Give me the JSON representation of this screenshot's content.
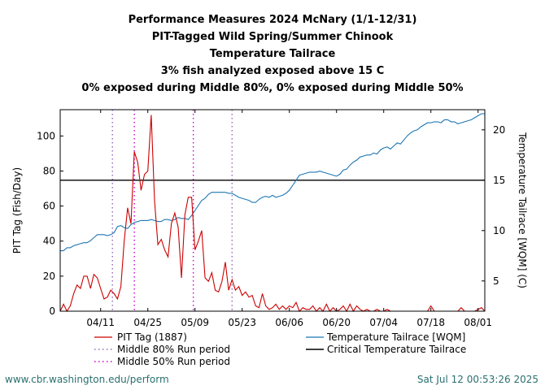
{
  "chart_data": {
    "type": "line",
    "title_lines": [
      "Performance Measures 2024 McNary (1/1-12/31)",
      "PIT-Tagged Wild Spring/Summer Chinook",
      "Temperature Tailrace",
      "3% fish analyzed exposed above 15 C",
      "0% exposed during Middle 80%, 0% exposed during Middle 50%"
    ],
    "ylabel_left": "PIT Tag (Fish/Day)",
    "ylabel_right": "Temperature Tailrace [WQM] (C)",
    "x_range_day": [
      90,
      216
    ],
    "y_left_range": [
      0,
      115
    ],
    "y_right_range": [
      2,
      22
    ],
    "x_ticks": [
      {
        "day": 102,
        "label": "04/11"
      },
      {
        "day": 116,
        "label": "04/25"
      },
      {
        "day": 130,
        "label": "05/09"
      },
      {
        "day": 144,
        "label": "05/23"
      },
      {
        "day": 158,
        "label": "06/06"
      },
      {
        "day": 172,
        "label": "06/20"
      },
      {
        "day": 186,
        "label": "07/04"
      },
      {
        "day": 200,
        "label": "07/18"
      },
      {
        "day": 214,
        "label": "08/01"
      }
    ],
    "y_left_ticks": [
      0,
      20,
      40,
      60,
      80,
      100
    ],
    "y_right_ticks": [
      5,
      10,
      15,
      20
    ],
    "critical_temperature": 15,
    "middle80_days": [
      105.5,
      141
    ],
    "middle50_days": [
      112,
      129.5
    ],
    "series": [
      {
        "name": "PIT Tag",
        "legend": "PIT Tag (1887)",
        "color": "#cc0000",
        "axis": "left",
        "points": [
          [
            90,
            0
          ],
          [
            91,
            4
          ],
          [
            92,
            0
          ],
          [
            93,
            3
          ],
          [
            94,
            10
          ],
          [
            95,
            15
          ],
          [
            96,
            13
          ],
          [
            97,
            20
          ],
          [
            98,
            20
          ],
          [
            99,
            13
          ],
          [
            100,
            21
          ],
          [
            101,
            19
          ],
          [
            102,
            13
          ],
          [
            103,
            7
          ],
          [
            104,
            8
          ],
          [
            105,
            12
          ],
          [
            106,
            10
          ],
          [
            107,
            7
          ],
          [
            108,
            14
          ],
          [
            109,
            40
          ],
          [
            110,
            59
          ],
          [
            111,
            50
          ],
          [
            112,
            91
          ],
          [
            113,
            85
          ],
          [
            114,
            69
          ],
          [
            115,
            78
          ],
          [
            116,
            80
          ],
          [
            117,
            112
          ],
          [
            118,
            63
          ],
          [
            119,
            38
          ],
          [
            120,
            41
          ],
          [
            121,
            35
          ],
          [
            122,
            31
          ],
          [
            123,
            50
          ],
          [
            124,
            56
          ],
          [
            125,
            48
          ],
          [
            126,
            19
          ],
          [
            127,
            55
          ],
          [
            128,
            65
          ],
          [
            129,
            65
          ],
          [
            130,
            35
          ],
          [
            131,
            40
          ],
          [
            132,
            46
          ],
          [
            133,
            19
          ],
          [
            134,
            17
          ],
          [
            135,
            22
          ],
          [
            136,
            12
          ],
          [
            137,
            11
          ],
          [
            138,
            17
          ],
          [
            139,
            28
          ],
          [
            140,
            12
          ],
          [
            141,
            18
          ],
          [
            142,
            12
          ],
          [
            143,
            14
          ],
          [
            144,
            9
          ],
          [
            145,
            11
          ],
          [
            146,
            8
          ],
          [
            147,
            9
          ],
          [
            148,
            3
          ],
          [
            149,
            2
          ],
          [
            150,
            10
          ],
          [
            151,
            3
          ],
          [
            152,
            1
          ],
          [
            153,
            2
          ],
          [
            154,
            4
          ],
          [
            155,
            1
          ],
          [
            156,
            3
          ],
          [
            157,
            1
          ],
          [
            158,
            3
          ],
          [
            159,
            2
          ],
          [
            160,
            5
          ],
          [
            161,
            0
          ],
          [
            162,
            2
          ],
          [
            163,
            1
          ],
          [
            164,
            1
          ],
          [
            165,
            3
          ],
          [
            166,
            0
          ],
          [
            167,
            2
          ],
          [
            168,
            0
          ],
          [
            169,
            4
          ],
          [
            170,
            0
          ],
          [
            171,
            2
          ],
          [
            172,
            0
          ],
          [
            173,
            1
          ],
          [
            174,
            3
          ],
          [
            175,
            0
          ],
          [
            176,
            4
          ],
          [
            177,
            0
          ],
          [
            178,
            3
          ],
          [
            179,
            1
          ],
          [
            180,
            0
          ],
          [
            181,
            1
          ],
          [
            182,
            0
          ],
          [
            183,
            0
          ],
          [
            184,
            1
          ],
          [
            185,
            0
          ],
          [
            186,
            0
          ],
          [
            187,
            1
          ],
          [
            188,
            0
          ],
          [
            189,
            0
          ],
          [
            190,
            0
          ],
          [
            191,
            0
          ],
          [
            192,
            0
          ],
          [
            193,
            0
          ],
          [
            194,
            0
          ],
          [
            195,
            0
          ],
          [
            196,
            0
          ],
          [
            197,
            0
          ],
          [
            198,
            0
          ],
          [
            199,
            0
          ],
          [
            200,
            3
          ],
          [
            201,
            0
          ],
          [
            202,
            0
          ],
          [
            203,
            0
          ],
          [
            204,
            0
          ],
          [
            205,
            0
          ],
          [
            206,
            0
          ],
          [
            207,
            0
          ],
          [
            208,
            0
          ],
          [
            209,
            2
          ],
          [
            210,
            0
          ],
          [
            211,
            0
          ],
          [
            212,
            0
          ],
          [
            213,
            0
          ],
          [
            214,
            1
          ],
          [
            215,
            2
          ],
          [
            216,
            0
          ]
        ]
      },
      {
        "name": "Temperature Tailrace [WQM]",
        "legend": "Temperature Tailrace [WQM]",
        "color": "#1f77b4",
        "axis": "right",
        "points": [
          [
            90,
            8.0
          ],
          [
            91,
            8.0
          ],
          [
            92,
            8.3
          ],
          [
            93,
            8.3
          ],
          [
            94,
            8.5
          ],
          [
            95,
            8.6
          ],
          [
            96,
            8.7
          ],
          [
            97,
            8.8
          ],
          [
            98,
            8.8
          ],
          [
            99,
            9.0
          ],
          [
            100,
            9.3
          ],
          [
            101,
            9.6
          ],
          [
            102,
            9.6
          ],
          [
            103,
            9.6
          ],
          [
            104,
            9.5
          ],
          [
            105,
            9.6
          ],
          [
            106,
            9.8
          ],
          [
            107,
            10.4
          ],
          [
            108,
            10.5
          ],
          [
            109,
            10.3
          ],
          [
            110,
            10.2
          ],
          [
            111,
            10.6
          ],
          [
            112,
            10.8
          ],
          [
            113,
            10.9
          ],
          [
            114,
            11.0
          ],
          [
            115,
            11.0
          ],
          [
            116,
            11.0
          ],
          [
            117,
            11.1
          ],
          [
            118,
            11.0
          ],
          [
            119,
            10.9
          ],
          [
            120,
            10.9
          ],
          [
            121,
            11.1
          ],
          [
            122,
            11.1
          ],
          [
            123,
            11.0
          ],
          [
            124,
            11.1
          ],
          [
            125,
            11.3
          ],
          [
            126,
            11.2
          ],
          [
            127,
            11.2
          ],
          [
            128,
            11.1
          ],
          [
            129,
            11.5
          ],
          [
            130,
            12.0
          ],
          [
            131,
            12.5
          ],
          [
            132,
            13.0
          ],
          [
            133,
            13.2
          ],
          [
            134,
            13.6
          ],
          [
            135,
            13.8
          ],
          [
            136,
            13.8
          ],
          [
            137,
            13.8
          ],
          [
            138,
            13.8
          ],
          [
            139,
            13.8
          ],
          [
            140,
            13.7
          ],
          [
            141,
            13.7
          ],
          [
            142,
            13.5
          ],
          [
            143,
            13.3
          ],
          [
            144,
            13.2
          ],
          [
            145,
            13.1
          ],
          [
            146,
            13.0
          ],
          [
            147,
            12.8
          ],
          [
            148,
            12.8
          ],
          [
            149,
            13.1
          ],
          [
            150,
            13.3
          ],
          [
            151,
            13.4
          ],
          [
            152,
            13.3
          ],
          [
            153,
            13.5
          ],
          [
            154,
            13.3
          ],
          [
            155,
            13.4
          ],
          [
            156,
            13.5
          ],
          [
            157,
            13.7
          ],
          [
            158,
            14.0
          ],
          [
            159,
            14.5
          ],
          [
            160,
            15.0
          ],
          [
            161,
            15.5
          ],
          [
            162,
            15.6
          ],
          [
            163,
            15.7
          ],
          [
            164,
            15.8
          ],
          [
            165,
            15.8
          ],
          [
            166,
            15.8
          ],
          [
            167,
            15.9
          ],
          [
            168,
            15.8
          ],
          [
            169,
            15.7
          ],
          [
            170,
            15.6
          ],
          [
            171,
            15.5
          ],
          [
            172,
            15.4
          ],
          [
            173,
            15.6
          ],
          [
            174,
            16.0
          ],
          [
            175,
            16.1
          ],
          [
            176,
            16.5
          ],
          [
            177,
            16.8
          ],
          [
            178,
            17.0
          ],
          [
            179,
            17.3
          ],
          [
            180,
            17.4
          ],
          [
            181,
            17.5
          ],
          [
            182,
            17.5
          ],
          [
            183,
            17.7
          ],
          [
            184,
            17.6
          ],
          [
            185,
            18.0
          ],
          [
            186,
            18.2
          ],
          [
            187,
            18.3
          ],
          [
            188,
            18.1
          ],
          [
            189,
            18.4
          ],
          [
            190,
            18.7
          ],
          [
            191,
            18.6
          ],
          [
            192,
            19.0
          ],
          [
            193,
            19.4
          ],
          [
            194,
            19.7
          ],
          [
            195,
            19.9
          ],
          [
            196,
            20.0
          ],
          [
            197,
            20.3
          ],
          [
            198,
            20.5
          ],
          [
            199,
            20.7
          ],
          [
            200,
            20.7
          ],
          [
            201,
            20.8
          ],
          [
            202,
            20.8
          ],
          [
            203,
            20.7
          ],
          [
            204,
            21.0
          ],
          [
            205,
            21.0
          ],
          [
            206,
            20.8
          ],
          [
            207,
            20.8
          ],
          [
            208,
            20.6
          ],
          [
            209,
            20.7
          ],
          [
            210,
            20.8
          ],
          [
            211,
            20.9
          ],
          [
            212,
            21.0
          ],
          [
            213,
            21.2
          ],
          [
            214,
            21.4
          ],
          [
            215,
            21.6
          ],
          [
            216,
            21.6
          ]
        ]
      }
    ],
    "legend": {
      "pit": "PIT Tag (1887)",
      "temp": "Temperature Tailrace [WQM]",
      "mid80": "Middle 80% Run period",
      "critical": "Critical Temperature Tailrace",
      "mid50": "Middle 50% Run period"
    },
    "colors": {
      "pit": "#cc0000",
      "temp": "#1f77b4",
      "mid80": "#9467bd",
      "mid50": "#cc00cc",
      "critical": "#000000"
    }
  },
  "footer": {
    "url": "www.cbr.washington.edu/perform",
    "timestamp": "Sat Jul 12 00:53:26 2025"
  }
}
